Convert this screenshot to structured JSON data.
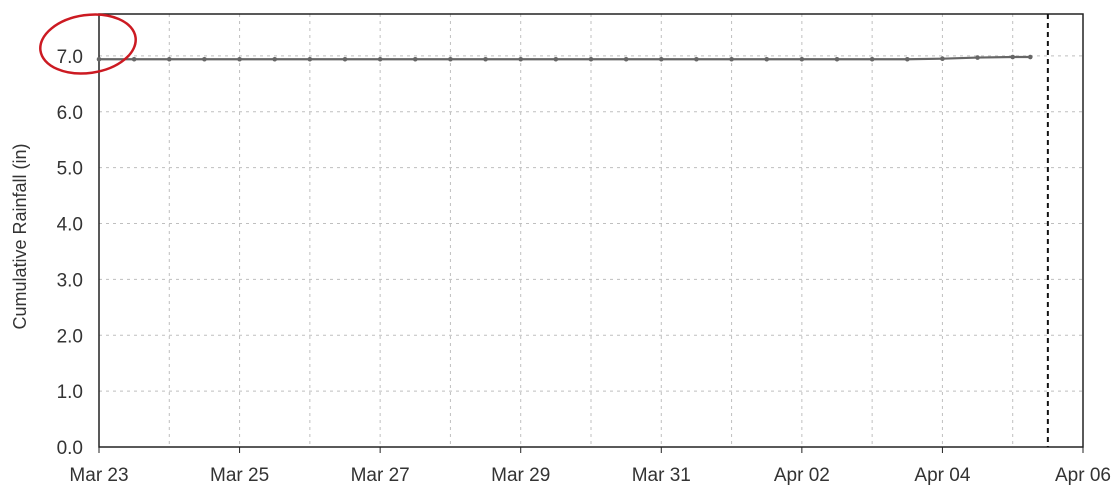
{
  "chart_data": {
    "type": "line",
    "title": "",
    "xlabel": "",
    "ylabel": "Cumulative Rainfall (in)",
    "x_ticks": [
      "Mar 23",
      "Mar 25",
      "Mar 27",
      "Mar 29",
      "Mar 31",
      "Apr 02",
      "Apr 04",
      "Apr 06"
    ],
    "y_ticks": [
      "0.0",
      "1.0",
      "2.0",
      "3.0",
      "4.0",
      "5.0",
      "6.0",
      "7.0"
    ],
    "xlim": [
      "2023-03-23",
      "2023-04-06"
    ],
    "ylim": [
      0,
      7.75
    ],
    "grid": true,
    "legend": "none",
    "series": [
      {
        "color": "#666666",
        "points": [
          {
            "x": "2023-03-23T00:00",
            "y": 6.94
          },
          {
            "x": "2023-03-23T12:00",
            "y": 6.94
          },
          {
            "x": "2023-03-24T00:00",
            "y": 6.94
          },
          {
            "x": "2023-03-24T12:00",
            "y": 6.94
          },
          {
            "x": "2023-03-25T00:00",
            "y": 6.94
          },
          {
            "x": "2023-03-25T12:00",
            "y": 6.94
          },
          {
            "x": "2023-03-26T00:00",
            "y": 6.94
          },
          {
            "x": "2023-03-26T12:00",
            "y": 6.94
          },
          {
            "x": "2023-03-27T00:00",
            "y": 6.94
          },
          {
            "x": "2023-03-27T12:00",
            "y": 6.94
          },
          {
            "x": "2023-03-28T00:00",
            "y": 6.94
          },
          {
            "x": "2023-03-28T12:00",
            "y": 6.94
          },
          {
            "x": "2023-03-29T00:00",
            "y": 6.94
          },
          {
            "x": "2023-03-29T12:00",
            "y": 6.94
          },
          {
            "x": "2023-03-30T00:00",
            "y": 6.94
          },
          {
            "x": "2023-03-30T12:00",
            "y": 6.94
          },
          {
            "x": "2023-03-31T00:00",
            "y": 6.94
          },
          {
            "x": "2023-03-31T12:00",
            "y": 6.94
          },
          {
            "x": "2023-04-01T00:00",
            "y": 6.94
          },
          {
            "x": "2023-04-01T12:00",
            "y": 6.94
          },
          {
            "x": "2023-04-02T00:00",
            "y": 6.94
          },
          {
            "x": "2023-04-02T12:00",
            "y": 6.94
          },
          {
            "x": "2023-04-03T00:00",
            "y": 6.94
          },
          {
            "x": "2023-04-03T12:00",
            "y": 6.94
          },
          {
            "x": "2023-04-04T00:00",
            "y": 6.95
          },
          {
            "x": "2023-04-04T12:00",
            "y": 6.97
          },
          {
            "x": "2023-04-05T00:00",
            "y": 6.98
          },
          {
            "x": "2023-04-05T06:00",
            "y": 6.98
          }
        ]
      }
    ],
    "current_time_marker": "2023-04-05T12:00",
    "annotation": {
      "type": "circle",
      "target": "7.0 tick label",
      "color": "#cc1a22"
    },
    "colors": {
      "plot_border": "#222222",
      "gridline": "#bfbfbf",
      "line": "#666666",
      "marker_line": "#111111"
    }
  }
}
